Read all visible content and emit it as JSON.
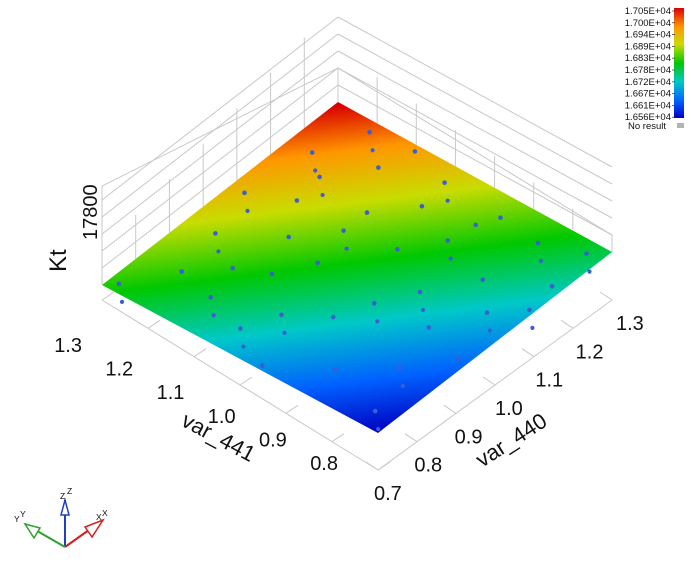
{
  "chart_data": {
    "type": "surface3d",
    "title": "",
    "x_axis": {
      "label": "var_440",
      "ticks": [
        "0.7",
        "0.8",
        "0.9",
        "1.0",
        "1.1",
        "1.2",
        "1.3"
      ],
      "range": [
        0.7,
        1.3
      ]
    },
    "y_axis": {
      "label": "var_441",
      "ticks": [
        "0.8",
        "0.9",
        "1.0",
        "1.1",
        "1.2",
        "1.3"
      ],
      "range": [
        0.7,
        1.3
      ]
    },
    "z_axis": {
      "label": "Kt",
      "ticks": [
        "17800"
      ]
    },
    "colorbar": {
      "labels": [
        "1.705E+04",
        "1.700E+04",
        "1.694E+04",
        "1.689E+04",
        "1.683E+04",
        "1.678E+04",
        "1.672E+04",
        "1.667E+04",
        "1.661E+04",
        "1.656E+04"
      ],
      "range": [
        16560,
        17050
      ],
      "no_result_label": "No result",
      "no_result_color": "#b3b3b3"
    },
    "colormap": [
      "#0000c8",
      "#0064ff",
      "#00c8c8",
      "#00c800",
      "#c8dc00",
      "#ff9600",
      "#dc0000"
    ],
    "surface": {
      "min": 16560,
      "max": 17050,
      "gradient": "increases with var_440 and var_441"
    },
    "points": {
      "color": "#3a5fd0",
      "list": [
        [
          0.72,
          1.28
        ],
        [
          0.81,
          1.22
        ],
        [
          0.76,
          1.05
        ],
        [
          0.87,
          1.16
        ],
        [
          0.92,
          1.24
        ],
        [
          0.97,
          1.06
        ],
        [
          1.03,
          1.27
        ],
        [
          1.07,
          1.19
        ],
        [
          0.95,
          0.92
        ],
        [
          1.12,
          1.08
        ],
        [
          1.18,
          1.25
        ],
        [
          1.22,
          1.14
        ],
        [
          1.28,
          1.21
        ],
        [
          0.78,
          0.86
        ],
        [
          0.85,
          0.78
        ],
        [
          0.88,
          0.95
        ],
        [
          1.02,
          0.88
        ],
        [
          1.08,
          0.98
        ],
        [
          1.15,
          0.93
        ],
        [
          1.19,
          1.02
        ],
        [
          1.26,
          1.03
        ],
        [
          1.29,
          1.12
        ],
        [
          0.74,
          0.74
        ],
        [
          0.93,
          0.72
        ],
        [
          1.05,
          0.76
        ],
        [
          1.11,
          0.82
        ],
        [
          1.24,
          0.81
        ],
        [
          1.17,
          0.72
        ],
        [
          1.27,
          0.73
        ],
        [
          0.99,
          1.14
        ],
        [
          0.83,
          1.02
        ],
        [
          0.71,
          0.96
        ],
        [
          1.06,
          1.08
        ],
        [
          0.9,
          1.1
        ],
        [
          1.14,
          1.2
        ],
        [
          1.21,
          0.92
        ],
        [
          0.79,
          1.14
        ],
        [
          0.96,
          0.81
        ],
        [
          1.1,
          0.71
        ],
        [
          1.25,
          0.9
        ]
      ]
    }
  },
  "triad": {
    "x_label": "X",
    "y_label": "Y",
    "z_label": "Z"
  }
}
